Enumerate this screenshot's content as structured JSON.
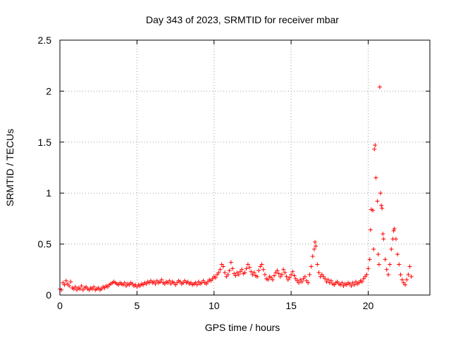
{
  "chart_data": {
    "type": "scatter",
    "title": "Day 343 of 2023, SRMTID for receiver mbar",
    "xlabel": "GPS time / hours",
    "ylabel": "SRMTID / TECUs",
    "xlim": [
      0,
      24
    ],
    "ylim": [
      0,
      2.5
    ],
    "x_ticks": [
      {
        "value": 0,
        "label": "0"
      },
      {
        "value": 5,
        "label": "5"
      },
      {
        "value": 10,
        "label": "10"
      },
      {
        "value": 15,
        "label": "15"
      },
      {
        "value": 20,
        "label": "20"
      }
    ],
    "y_ticks": [
      {
        "value": 0,
        "label": "0"
      },
      {
        "value": 0.5,
        "label": "0.5"
      },
      {
        "value": 1,
        "label": "1"
      },
      {
        "value": 1.5,
        "label": "1.5"
      },
      {
        "value": 2,
        "label": "2"
      },
      {
        "value": 2.5,
        "label": "2.5"
      }
    ],
    "grid": true,
    "marker": "+",
    "color": "#ff0000",
    "series": [
      {
        "name": "SRMTID",
        "points": [
          [
            0.0,
            0.06
          ],
          [
            0.1,
            0.05
          ],
          [
            0.2,
            0.12
          ],
          [
            0.3,
            0.1
          ],
          [
            0.4,
            0.14
          ],
          [
            0.5,
            0.11
          ],
          [
            0.6,
            0.09
          ],
          [
            0.7,
            0.13
          ],
          [
            0.8,
            0.07
          ],
          [
            0.9,
            0.06
          ],
          [
            1.0,
            0.08
          ],
          [
            1.1,
            0.05
          ],
          [
            1.2,
            0.07
          ],
          [
            1.3,
            0.06
          ],
          [
            1.4,
            0.09
          ],
          [
            1.5,
            0.05
          ],
          [
            1.6,
            0.07
          ],
          [
            1.7,
            0.08
          ],
          [
            1.8,
            0.06
          ],
          [
            1.9,
            0.05
          ],
          [
            2.0,
            0.07
          ],
          [
            2.1,
            0.06
          ],
          [
            2.2,
            0.08
          ],
          [
            2.3,
            0.05
          ],
          [
            2.4,
            0.06
          ],
          [
            2.5,
            0.07
          ],
          [
            2.6,
            0.05
          ],
          [
            2.7,
            0.06
          ],
          [
            2.8,
            0.08
          ],
          [
            2.9,
            0.07
          ],
          [
            3.0,
            0.09
          ],
          [
            3.1,
            0.08
          ],
          [
            3.2,
            0.1
          ],
          [
            3.3,
            0.11
          ],
          [
            3.4,
            0.12
          ],
          [
            3.5,
            0.13
          ],
          [
            3.6,
            0.12
          ],
          [
            3.7,
            0.11
          ],
          [
            3.8,
            0.1
          ],
          [
            3.9,
            0.12
          ],
          [
            4.0,
            0.11
          ],
          [
            4.1,
            0.1
          ],
          [
            4.2,
            0.12
          ],
          [
            4.3,
            0.09
          ],
          [
            4.4,
            0.11
          ],
          [
            4.5,
            0.1
          ],
          [
            4.6,
            0.12
          ],
          [
            4.7,
            0.11
          ],
          [
            4.8,
            0.09
          ],
          [
            4.9,
            0.1
          ],
          [
            5.0,
            0.08
          ],
          [
            5.1,
            0.1
          ],
          [
            5.2,
            0.09
          ],
          [
            5.3,
            0.11
          ],
          [
            5.4,
            0.1
          ],
          [
            5.5,
            0.12
          ],
          [
            5.6,
            0.11
          ],
          [
            5.7,
            0.13
          ],
          [
            5.8,
            0.12
          ],
          [
            5.9,
            0.14
          ],
          [
            6.0,
            0.12
          ],
          [
            6.1,
            0.13
          ],
          [
            6.2,
            0.11
          ],
          [
            6.3,
            0.14
          ],
          [
            6.4,
            0.12
          ],
          [
            6.5,
            0.13
          ],
          [
            6.6,
            0.15
          ],
          [
            6.7,
            0.12
          ],
          [
            6.8,
            0.11
          ],
          [
            6.9,
            0.13
          ],
          [
            7.0,
            0.12
          ],
          [
            7.1,
            0.14
          ],
          [
            7.2,
            0.11
          ],
          [
            7.3,
            0.13
          ],
          [
            7.4,
            0.12
          ],
          [
            7.5,
            0.1
          ],
          [
            7.6,
            0.12
          ],
          [
            7.7,
            0.14
          ],
          [
            7.8,
            0.13
          ],
          [
            7.9,
            0.11
          ],
          [
            8.0,
            0.12
          ],
          [
            8.1,
            0.14
          ],
          [
            8.2,
            0.12
          ],
          [
            8.3,
            0.13
          ],
          [
            8.4,
            0.11
          ],
          [
            8.5,
            0.12
          ],
          [
            8.6,
            0.1
          ],
          [
            8.7,
            0.11
          ],
          [
            8.8,
            0.12
          ],
          [
            8.9,
            0.1
          ],
          [
            9.0,
            0.13
          ],
          [
            9.1,
            0.11
          ],
          [
            9.2,
            0.12
          ],
          [
            9.3,
            0.14
          ],
          [
            9.4,
            0.12
          ],
          [
            9.5,
            0.11
          ],
          [
            9.6,
            0.13
          ],
          [
            9.7,
            0.15
          ],
          [
            9.8,
            0.14
          ],
          [
            9.9,
            0.16
          ],
          [
            10.0,
            0.18
          ],
          [
            10.1,
            0.17
          ],
          [
            10.2,
            0.2
          ],
          [
            10.3,
            0.22
          ],
          [
            10.4,
            0.25
          ],
          [
            10.5,
            0.3
          ],
          [
            10.6,
            0.28
          ],
          [
            10.7,
            0.22
          ],
          [
            10.8,
            0.18
          ],
          [
            10.9,
            0.2
          ],
          [
            11.0,
            0.24
          ],
          [
            11.1,
            0.32
          ],
          [
            11.2,
            0.26
          ],
          [
            11.3,
            0.21
          ],
          [
            11.4,
            0.19
          ],
          [
            11.5,
            0.22
          ],
          [
            11.6,
            0.2
          ],
          [
            11.7,
            0.23
          ],
          [
            11.8,
            0.25
          ],
          [
            11.9,
            0.21
          ],
          [
            12.0,
            0.22
          ],
          [
            12.1,
            0.26
          ],
          [
            12.2,
            0.3
          ],
          [
            12.3,
            0.27
          ],
          [
            12.4,
            0.23
          ],
          [
            12.5,
            0.2
          ],
          [
            12.6,
            0.22
          ],
          [
            12.7,
            0.19
          ],
          [
            12.8,
            0.18
          ],
          [
            12.9,
            0.24
          ],
          [
            13.0,
            0.28
          ],
          [
            13.1,
            0.3
          ],
          [
            13.2,
            0.25
          ],
          [
            13.3,
            0.2
          ],
          [
            13.4,
            0.16
          ],
          [
            13.5,
            0.15
          ],
          [
            13.6,
            0.18
          ],
          [
            13.7,
            0.17
          ],
          [
            13.8,
            0.15
          ],
          [
            13.9,
            0.19
          ],
          [
            14.0,
            0.22
          ],
          [
            14.1,
            0.24
          ],
          [
            14.2,
            0.21
          ],
          [
            14.3,
            0.18
          ],
          [
            14.4,
            0.2
          ],
          [
            14.5,
            0.25
          ],
          [
            14.6,
            0.22
          ],
          [
            14.7,
            0.18
          ],
          [
            14.8,
            0.15
          ],
          [
            14.9,
            0.17
          ],
          [
            15.0,
            0.2
          ],
          [
            15.1,
            0.23
          ],
          [
            15.2,
            0.19
          ],
          [
            15.3,
            0.16
          ],
          [
            15.4,
            0.14
          ],
          [
            15.5,
            0.12
          ],
          [
            15.6,
            0.15
          ],
          [
            15.7,
            0.13
          ],
          [
            15.8,
            0.16
          ],
          [
            15.9,
            0.18
          ],
          [
            16.0,
            0.14
          ],
          [
            16.1,
            0.12
          ],
          [
            16.2,
            0.2
          ],
          [
            16.3,
            0.28
          ],
          [
            16.4,
            0.38
          ],
          [
            16.5,
            0.45
          ],
          [
            16.55,
            0.52
          ],
          [
            16.6,
            0.48
          ],
          [
            16.7,
            0.3
          ],
          [
            16.8,
            0.22
          ],
          [
            16.9,
            0.18
          ],
          [
            17.0,
            0.2
          ],
          [
            17.1,
            0.18
          ],
          [
            17.2,
            0.16
          ],
          [
            17.3,
            0.13
          ],
          [
            17.4,
            0.15
          ],
          [
            17.5,
            0.12
          ],
          [
            17.6,
            0.14
          ],
          [
            17.7,
            0.11
          ],
          [
            17.8,
            0.1
          ],
          [
            17.9,
            0.12
          ],
          [
            18.0,
            0.13
          ],
          [
            18.1,
            0.11
          ],
          [
            18.2,
            0.1
          ],
          [
            18.3,
            0.12
          ],
          [
            18.4,
            0.09
          ],
          [
            18.5,
            0.11
          ],
          [
            18.6,
            0.1
          ],
          [
            18.7,
            0.12
          ],
          [
            18.8,
            0.11
          ],
          [
            18.9,
            0.09
          ],
          [
            19.0,
            0.12
          ],
          [
            19.1,
            0.1
          ],
          [
            19.2,
            0.13
          ],
          [
            19.3,
            0.11
          ],
          [
            19.4,
            0.12
          ],
          [
            19.5,
            0.14
          ],
          [
            19.6,
            0.13
          ],
          [
            19.7,
            0.16
          ],
          [
            19.8,
            0.18
          ],
          [
            19.9,
            0.2
          ],
          [
            20.0,
            0.26
          ],
          [
            20.1,
            0.35
          ],
          [
            20.15,
            0.64
          ],
          [
            20.2,
            0.84
          ],
          [
            20.3,
            0.83
          ],
          [
            20.35,
            0.45
          ],
          [
            20.4,
            1.43
          ],
          [
            20.45,
            1.47
          ],
          [
            20.5,
            1.15
          ],
          [
            20.6,
            0.92
          ],
          [
            20.65,
            0.4
          ],
          [
            20.7,
            0.3
          ],
          [
            20.75,
            2.04
          ],
          [
            20.8,
            1.0
          ],
          [
            20.85,
            0.88
          ],
          [
            20.9,
            0.85
          ],
          [
            20.95,
            0.6
          ],
          [
            21.0,
            0.55
          ],
          [
            21.1,
            0.35
          ],
          [
            21.2,
            0.25
          ],
          [
            21.3,
            0.2
          ],
          [
            21.4,
            0.3
          ],
          [
            21.5,
            0.45
          ],
          [
            21.6,
            0.55
          ],
          [
            21.65,
            0.63
          ],
          [
            21.7,
            0.65
          ],
          [
            21.8,
            0.55
          ],
          [
            21.9,
            0.4
          ],
          [
            22.0,
            0.3
          ],
          [
            22.1,
            0.2
          ],
          [
            22.2,
            0.15
          ],
          [
            22.3,
            0.12
          ],
          [
            22.4,
            0.1
          ],
          [
            22.5,
            0.15
          ],
          [
            22.6,
            0.2
          ],
          [
            22.7,
            0.28
          ],
          [
            22.8,
            0.18
          ]
        ]
      }
    ]
  }
}
